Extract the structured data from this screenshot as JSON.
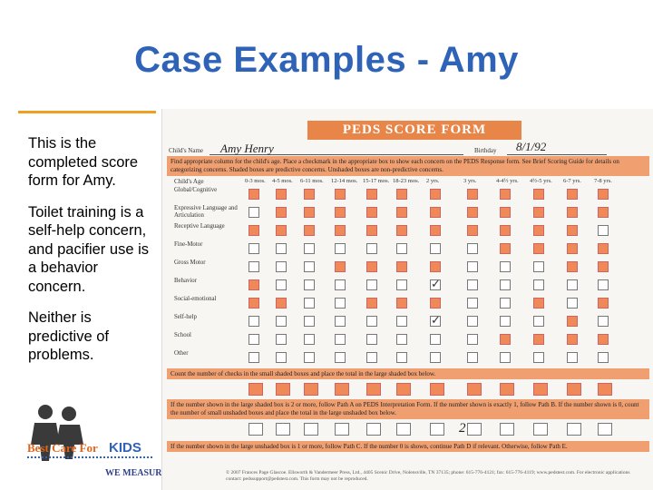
{
  "slide": {
    "title": "Case Examples - Amy",
    "bullets": [
      "This is the completed score form for Amy.",
      "Toilet training is a self-help concern, and pacifier use is a behavior concern.",
      "Neither is predictive of problems."
    ],
    "accent_color": "#f0a020",
    "title_color": "#2e63b8"
  },
  "logo": {
    "name": "Best Care For KIDS",
    "tagline": "WE MEASURE"
  },
  "form": {
    "heading": "PEDS SCORE FORM",
    "child_name_label": "Child's Name",
    "child_name_value": "Amy Henry",
    "birthday_label": "Birthday",
    "birthday_value": "8/1/92",
    "instruction": "Find appropriate column for the child's age. Place a checkmark in the appropriate box to show each concern on the PEDS Response form. See Brief Scoring Guide for details on categorizing concerns. Shaded boxes are predictive concerns. Unshaded boxes are non-predictive concerns.",
    "age_label": "Child's Age",
    "age_columns": [
      "0-3 mos.",
      "4-5 mos.",
      "6-11 mos.",
      "12-14 mos.",
      "15-17 mos.",
      "18-23 mos.",
      "2 yrs.",
      "3 yrs.",
      "4-4½ yrs.",
      "4½-5 yrs.",
      "6-7 yrs.",
      "7-8 yrs."
    ],
    "rows": [
      "Global/Cognitive",
      "Expressive Language and Articulation",
      "Receptive Language",
      "Fine-Motor",
      "Gross Motor",
      "Behavior",
      "Social-emotional",
      "Self-help",
      "School",
      "Other"
    ],
    "count_shaded": "Count the number of checks in the small shaded boxes and place the total in the large shaded box below.",
    "path_instruction": "If the number shown in the large shaded box is 2 or more, follow Path A on PEDS Interpretation Form. If the number shown is exactly 1, follow Path B. If the number shown is 0, count the number of small unshaded boxes and place the total in the large unshaded box below.",
    "unshaded_total": "2",
    "path_c_instruction": "If the number shown in the large unshaded box is 1 or more, follow Path C. If the number 0 is shown, continue Path D if relevant. Otherwise, follow Path E.",
    "footer": "© 2007 Frances Page Glascoe. Ellsworth & Vandermeer Press, Ltd., 4405 Scenic Drive, Nolensville, TN 37135; phone: 615-776-4121; fax: 615-776-4119; www.pedstest.com. For electronic applications contact: pedssupport@pedstest.com. This form may not be reproduced."
  }
}
